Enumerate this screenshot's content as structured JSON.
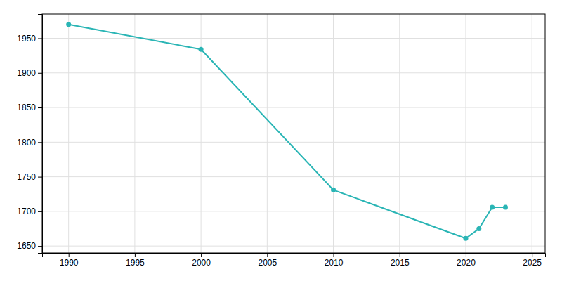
{
  "chart_data": {
    "type": "line",
    "x": [
      1990,
      2000,
      2010,
      2020,
      2021,
      2022,
      2023
    ],
    "values": [
      1970,
      1934,
      1731,
      1661,
      1675,
      1706,
      1706
    ],
    "color": "#2ab5b5",
    "marker": "circle",
    "xlim": [
      1988,
      2026
    ],
    "ylim": [
      1640,
      1985
    ],
    "xticks": [
      1990,
      1995,
      2000,
      2005,
      2010,
      2015,
      2020,
      2025
    ],
    "yticks": [
      1650,
      1700,
      1750,
      1800,
      1850,
      1900,
      1950
    ],
    "grid": true
  }
}
